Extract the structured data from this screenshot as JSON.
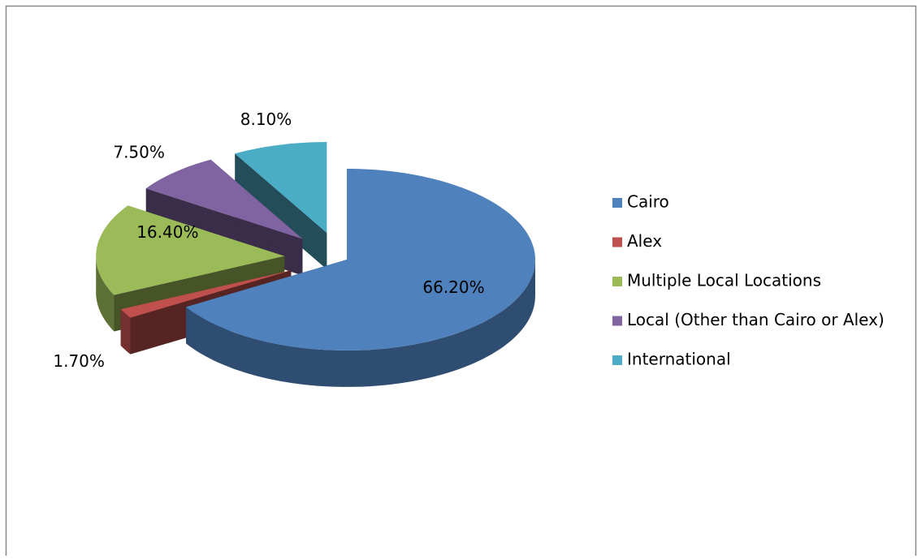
{
  "chart_data": {
    "type": "pie3d",
    "categories": [
      "Cairo",
      "Alex",
      "Multiple Local Locations",
      "Local (Other than Cairo or Alex)",
      "International"
    ],
    "values": [
      66.2,
      1.7,
      16.4,
      7.5,
      8.1
    ],
    "value_labels": [
      "66.20%",
      "1.70%",
      "16.40%",
      "7.50%",
      "8.10%"
    ],
    "colors": [
      "#4f81bd",
      "#c0504d",
      "#9bbb59",
      "#8064a2",
      "#4bacc6"
    ],
    "legend": "right"
  }
}
